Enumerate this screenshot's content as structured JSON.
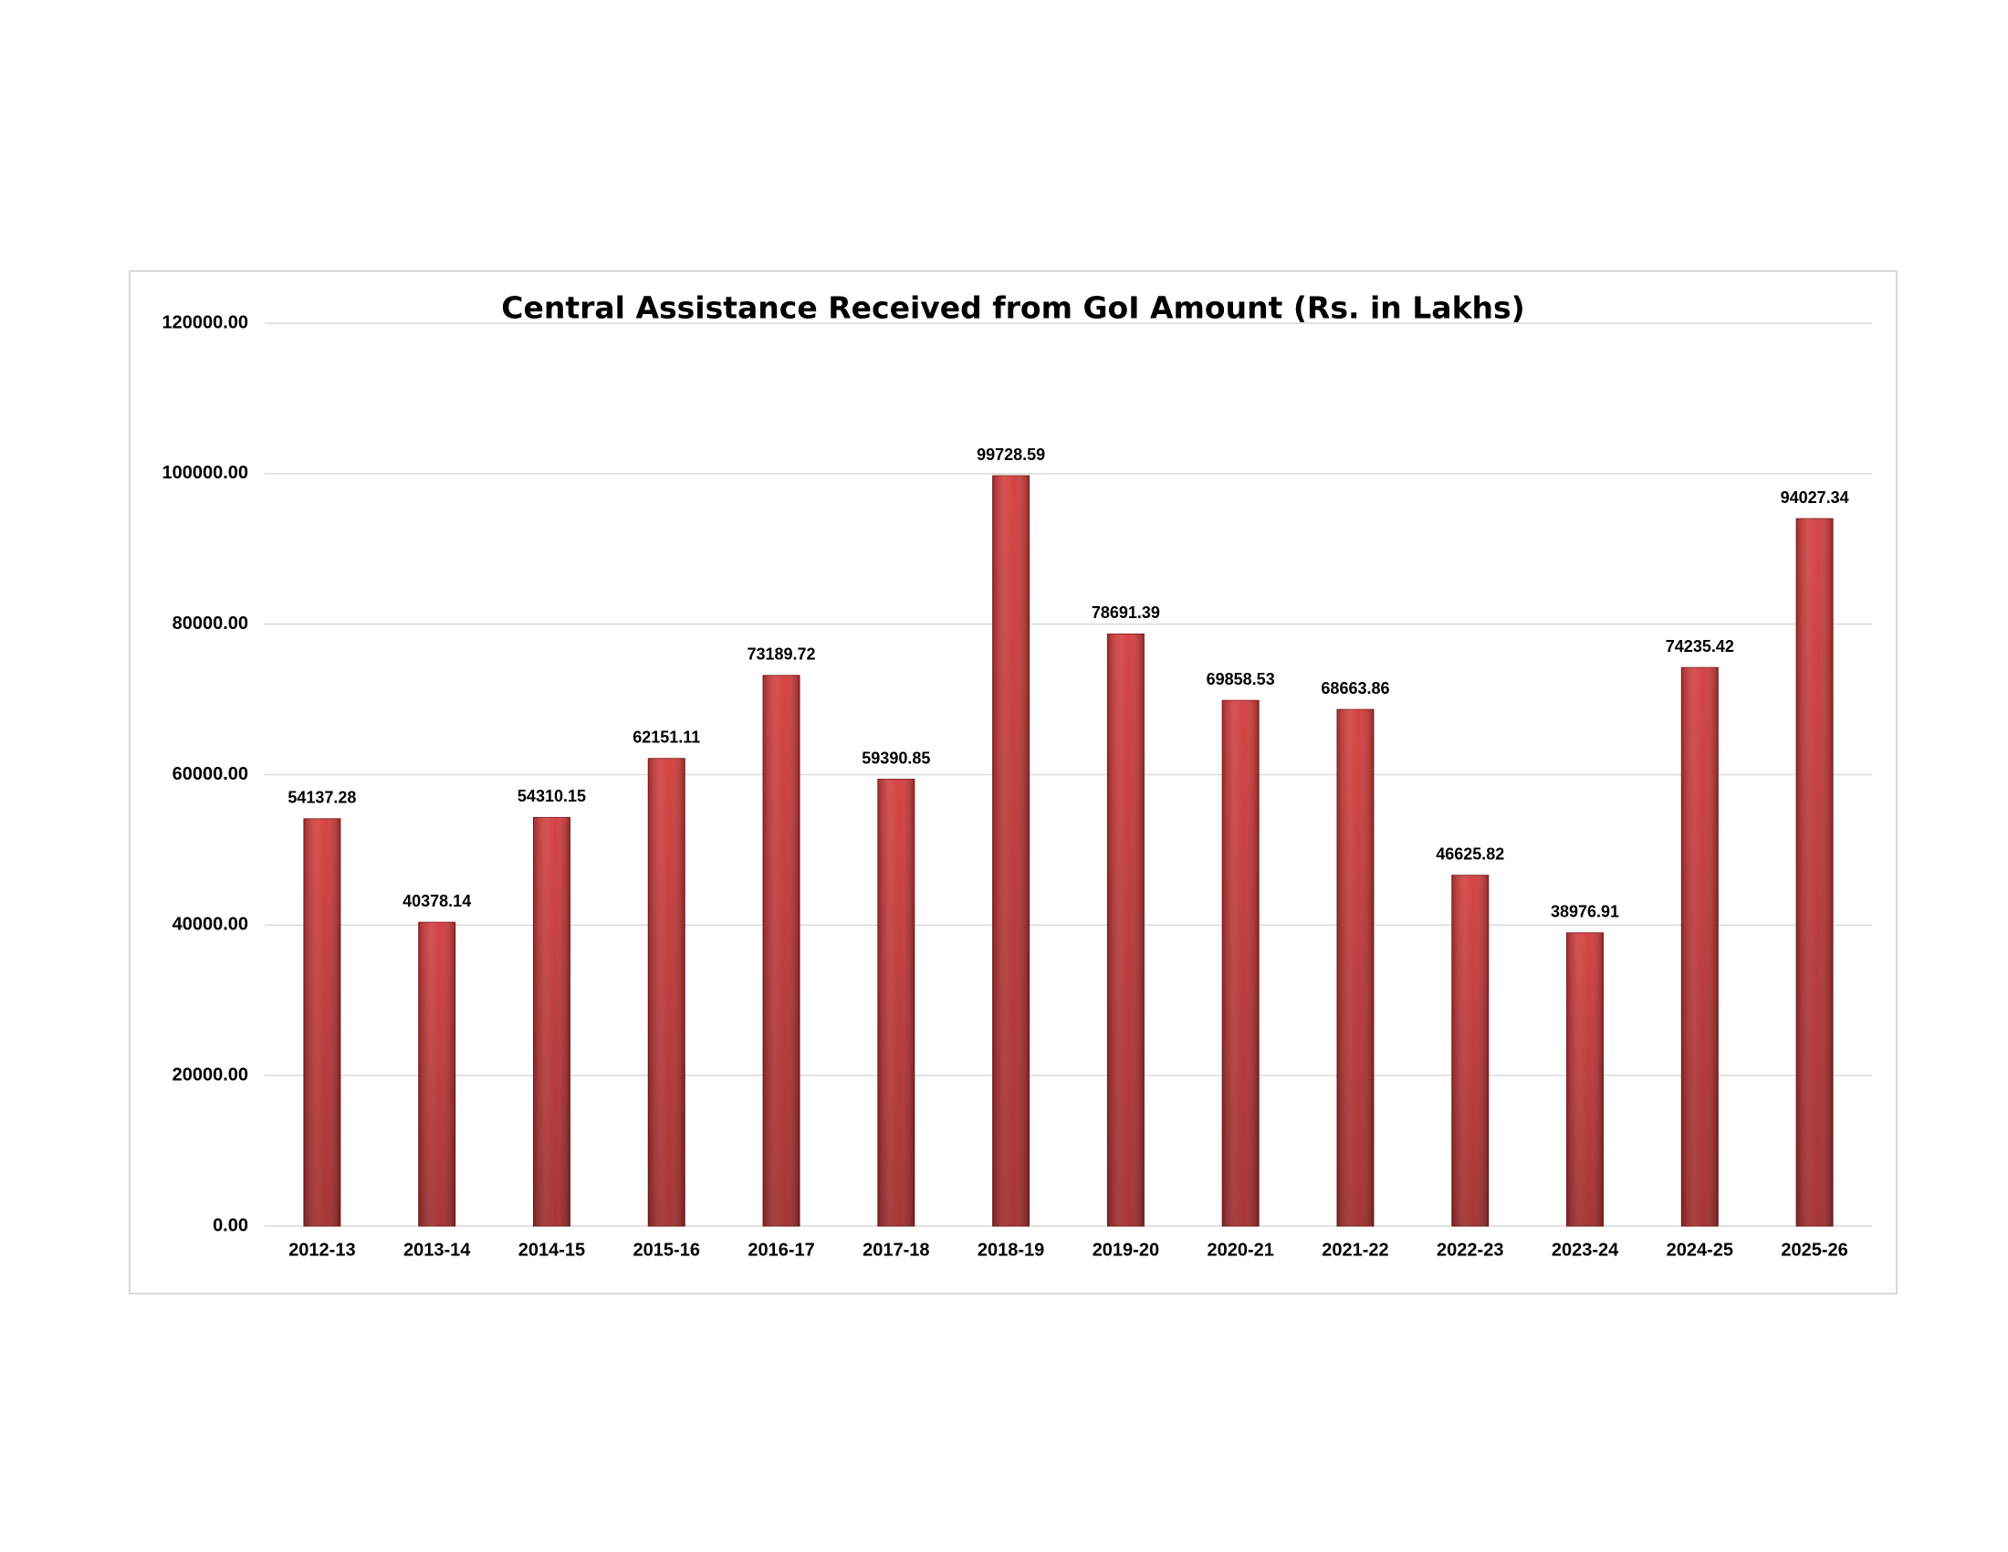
{
  "chart_data": {
    "type": "bar",
    "title": "Central Assistance Received from GoI Amount (Rs. in Lakhs)",
    "categories": [
      "2012-13",
      "2013-14",
      "2014-15",
      "2015-16",
      "2016-17",
      "2017-18",
      "2018-19",
      "2019-20",
      "2020-21",
      "2021-22",
      "2022-23",
      "2023-24",
      "2024-25",
      "2025-26"
    ],
    "values": [
      54137.28,
      40378.14,
      54310.15,
      62151.11,
      73189.72,
      59390.85,
      99728.59,
      78691.39,
      69858.53,
      68663.86,
      46625.82,
      38976.91,
      74235.42,
      94027.34
    ],
    "color": "#d23b3b",
    "ylim": [
      0,
      120000
    ],
    "yticks": [
      {
        "value": 0,
        "label": "0.00"
      },
      {
        "value": 20000,
        "label": "20000.00"
      },
      {
        "value": 40000,
        "label": "40000.00"
      },
      {
        "value": 60000,
        "label": "60000.00"
      },
      {
        "value": 80000,
        "label": "80000.00"
      },
      {
        "value": 100000,
        "label": "100000.00"
      },
      {
        "value": 120000,
        "label": "120000.00"
      }
    ],
    "grid": true
  }
}
